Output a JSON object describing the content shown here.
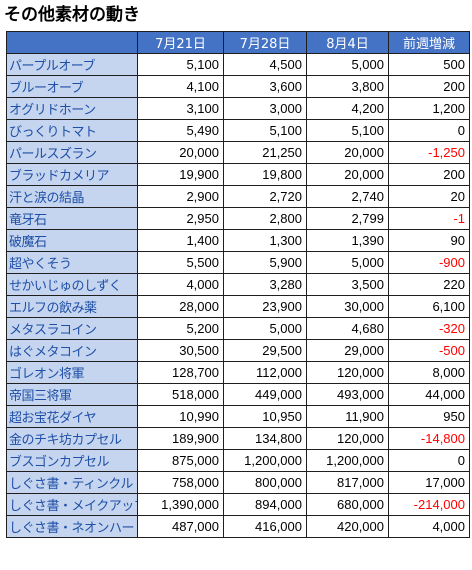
{
  "title": "その他素材の動き",
  "table": {
    "headers": [
      "",
      "7月21日",
      "7月28日",
      "8月4日",
      "前週増減"
    ],
    "rows": [
      {
        "name": "パープルオーブ",
        "v1": "5,100",
        "v2": "4,500",
        "v3": "5,000",
        "diff": "500",
        "negative": false
      },
      {
        "name": "ブルーオーブ",
        "v1": "4,100",
        "v2": "3,600",
        "v3": "3,800",
        "diff": "200",
        "negative": false
      },
      {
        "name": "オグリドホーン",
        "v1": "3,100",
        "v2": "3,000",
        "v3": "4,200",
        "diff": "1,200",
        "negative": false
      },
      {
        "name": "びっくりトマト",
        "v1": "5,490",
        "v2": "5,100",
        "v3": "5,100",
        "diff": "0",
        "negative": false
      },
      {
        "name": "パールスズラン",
        "v1": "20,000",
        "v2": "21,250",
        "v3": "20,000",
        "diff": "-1,250",
        "negative": true
      },
      {
        "name": "ブラッドカメリア",
        "v1": "19,900",
        "v2": "19,800",
        "v3": "20,000",
        "diff": "200",
        "negative": false
      },
      {
        "name": "汗と涙の結晶",
        "v1": "2,900",
        "v2": "2,720",
        "v3": "2,740",
        "diff": "20",
        "negative": false
      },
      {
        "name": "竜牙石",
        "v1": "2,950",
        "v2": "2,800",
        "v3": "2,799",
        "diff": "-1",
        "negative": true
      },
      {
        "name": "破魔石",
        "v1": "1,400",
        "v2": "1,300",
        "v3": "1,390",
        "diff": "90",
        "negative": false
      },
      {
        "name": "超やくそう",
        "v1": "5,500",
        "v2": "5,900",
        "v3": "5,000",
        "diff": "-900",
        "negative": true
      },
      {
        "name": "せかいじゅのしずく",
        "v1": "4,000",
        "v2": "3,280",
        "v3": "3,500",
        "diff": "220",
        "negative": false
      },
      {
        "name": "エルフの飲み薬",
        "v1": "28,000",
        "v2": "23,900",
        "v3": "30,000",
        "diff": "6,100",
        "negative": false
      },
      {
        "name": "メタスラコイン",
        "v1": "5,200",
        "v2": "5,000",
        "v3": "4,680",
        "diff": "-320",
        "negative": true
      },
      {
        "name": "はぐメタコイン",
        "v1": "30,500",
        "v2": "29,500",
        "v3": "29,000",
        "diff": "-500",
        "negative": true
      },
      {
        "name": "ゴレオン将軍",
        "v1": "128,700",
        "v2": "112,000",
        "v3": "120,000",
        "diff": "8,000",
        "negative": false
      },
      {
        "name": "帝国三将軍",
        "v1": "518,000",
        "v2": "449,000",
        "v3": "493,000",
        "diff": "44,000",
        "negative": false
      },
      {
        "name": "超お宝花ダイヤ",
        "v1": "10,990",
        "v2": "10,950",
        "v3": "11,900",
        "diff": "950",
        "negative": false
      },
      {
        "name": "金のチキ坊カプセル",
        "v1": "189,900",
        "v2": "134,800",
        "v3": "120,000",
        "diff": "-14,800",
        "negative": true
      },
      {
        "name": "ブスゴンカプセル",
        "v1": "875,000",
        "v2": "1,200,000",
        "v3": "1,200,000",
        "diff": "0",
        "negative": false
      },
      {
        "name": "しぐさ書・ティンクル",
        "v1": "758,000",
        "v2": "800,000",
        "v3": "817,000",
        "diff": "17,000",
        "negative": false
      },
      {
        "name": "しぐさ書・メイクアップ",
        "v1": "1,390,000",
        "v2": "894,000",
        "v3": "680,000",
        "diff": "-214,000",
        "negative": true
      },
      {
        "name": "しぐさ書・ネオンハート",
        "v1": "487,000",
        "v2": "416,000",
        "v3": "420,000",
        "diff": "4,000",
        "negative": false
      }
    ]
  }
}
